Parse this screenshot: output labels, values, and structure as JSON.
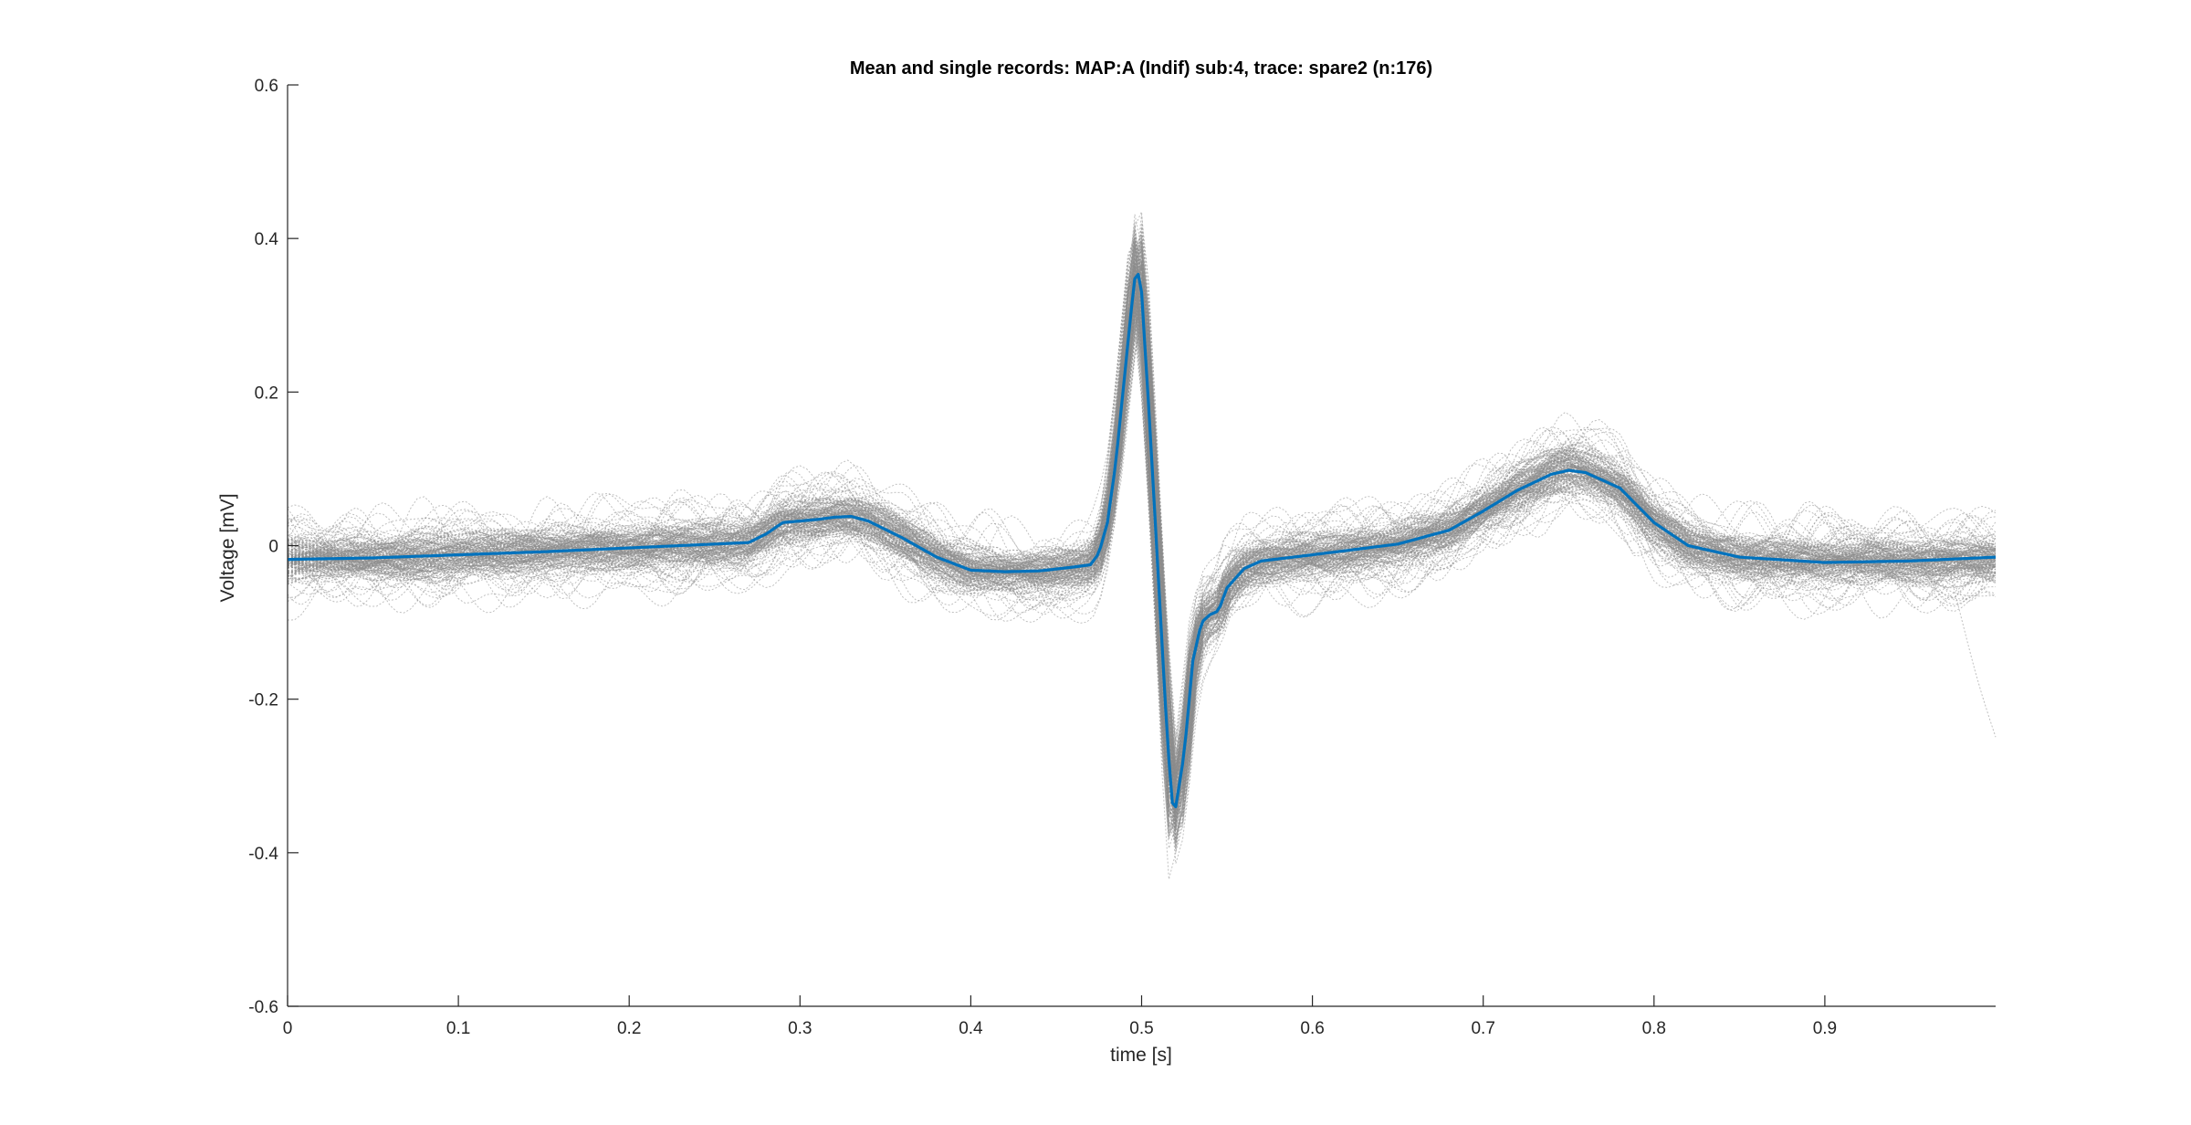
{
  "chart_data": {
    "type": "line",
    "title": "Mean and single records: MAP:A (Indif) sub:4, trace: spare2 (n:176)",
    "xlabel": "time [s]",
    "ylabel": "Voltage [mV]",
    "xlim": [
      0,
      1.0
    ],
    "ylim": [
      -0.6,
      0.6
    ],
    "x_ticks": [
      "0",
      "0.1",
      "0.2",
      "0.3",
      "0.4",
      "0.5",
      "0.6",
      "0.7",
      "0.8",
      "0.9"
    ],
    "x_tick_values": [
      0,
      0.1,
      0.2,
      0.3,
      0.4,
      0.5,
      0.6,
      0.7,
      0.8,
      0.9
    ],
    "y_ticks": [
      "-0.6",
      "-0.4",
      "-0.2",
      "0",
      "0.2",
      "0.4",
      "0.6"
    ],
    "y_tick_values": [
      -0.6,
      -0.4,
      -0.2,
      0,
      0.2,
      0.4,
      0.6
    ],
    "grid": false,
    "legend": "none",
    "single_records_count": 176,
    "mean_color": "#0072BD",
    "single_color": "#8c8c8c",
    "mean_series": {
      "x": [
        0,
        0.05,
        0.1,
        0.15,
        0.2,
        0.25,
        0.27,
        0.28,
        0.29,
        0.3,
        0.31,
        0.32,
        0.33,
        0.34,
        0.36,
        0.38,
        0.4,
        0.42,
        0.44,
        0.46,
        0.47,
        0.475,
        0.48,
        0.485,
        0.49,
        0.495,
        0.497,
        0.5,
        0.505,
        0.51,
        0.515,
        0.518,
        0.52,
        0.525,
        0.53,
        0.535,
        0.54,
        0.545,
        0.55,
        0.56,
        0.57,
        0.6,
        0.65,
        0.68,
        0.7,
        0.72,
        0.74,
        0.75,
        0.76,
        0.78,
        0.8,
        0.82,
        0.85,
        0.9,
        0.95,
        1.0
      ],
      "y": [
        -0.018,
        -0.016,
        -0.012,
        -0.008,
        -0.003,
        0.002,
        0.004,
        0.015,
        0.03,
        0.032,
        0.034,
        0.037,
        0.038,
        0.032,
        0.01,
        -0.015,
        -0.032,
        -0.034,
        -0.033,
        -0.028,
        -0.025,
        -0.01,
        0.03,
        0.11,
        0.22,
        0.33,
        0.365,
        0.33,
        0.15,
        -0.05,
        -0.25,
        -0.335,
        -0.34,
        -0.27,
        -0.15,
        -0.1,
        -0.09,
        -0.085,
        -0.055,
        -0.03,
        -0.02,
        -0.012,
        0.002,
        0.02,
        0.045,
        0.072,
        0.093,
        0.098,
        0.095,
        0.075,
        0.03,
        0.0,
        -0.015,
        -0.022,
        -0.02,
        -0.015
      ]
    }
  }
}
